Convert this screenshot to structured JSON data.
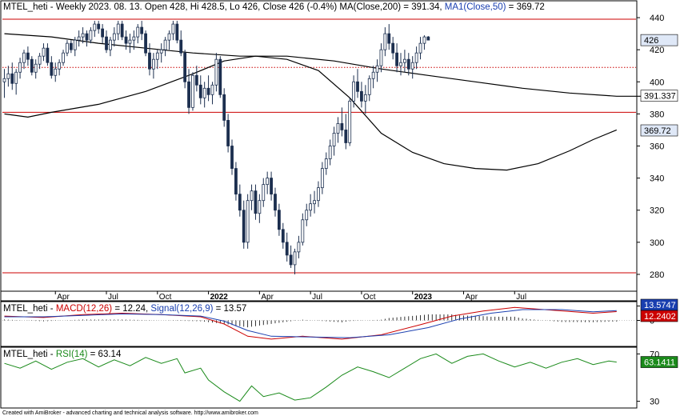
{
  "chart_data": [
    {
      "type": "candlestick",
      "header": {
        "prefix": "MTEL_heti - Weekly 2023. 08. 13. Open 428, Hi 428.5, Lo 426, Close 426 (-0.4%) MA(Close,200) = 391.34, ",
        "ma_label": "MA1(Close,50)",
        "ma_value": " = 369.72"
      },
      "ylim": [
        270,
        450
      ],
      "y_ticks": [
        280,
        300,
        320,
        340,
        360,
        380,
        400,
        420,
        440
      ],
      "x_ticks": [
        "Apr",
        "Jul",
        "Oct",
        "2022",
        "Apr",
        "Jul",
        "Oct",
        "2023",
        "Apr",
        "Jul"
      ],
      "price_badge": "426",
      "ma200_badge": "391.337",
      "ma50_badge": "369.72",
      "horizontal_levels": [
        {
          "value": 439,
          "style": "solid",
          "color": "#cc0000"
        },
        {
          "value": 409,
          "style": "dotted",
          "color": "#cc0000"
        },
        {
          "value": 381,
          "style": "solid",
          "color": "#cc0000"
        },
        {
          "value": 281,
          "style": "solid",
          "color": "#cc0000"
        }
      ],
      "ma200": [
        [
          0,
          430
        ],
        [
          12,
          428
        ],
        [
          24,
          424
        ],
        [
          36,
          421
        ],
        [
          48,
          418
        ],
        [
          60,
          416
        ],
        [
          72,
          416
        ],
        [
          84,
          413
        ],
        [
          96,
          408
        ],
        [
          108,
          404
        ],
        [
          120,
          400
        ],
        [
          132,
          396
        ],
        [
          144,
          393
        ],
        [
          156,
          391
        ],
        [
          168,
          391
        ]
      ],
      "ma50": [
        [
          0,
          380
        ],
        [
          6,
          378
        ],
        [
          12,
          381
        ],
        [
          24,
          386
        ],
        [
          36,
          394
        ],
        [
          48,
          405
        ],
        [
          56,
          413
        ],
        [
          64,
          416
        ],
        [
          72,
          414
        ],
        [
          80,
          407
        ],
        [
          88,
          390
        ],
        [
          96,
          368
        ],
        [
          104,
          356
        ],
        [
          112,
          349
        ],
        [
          120,
          346
        ],
        [
          128,
          345
        ],
        [
          136,
          349
        ],
        [
          144,
          357
        ],
        [
          150,
          364
        ],
        [
          156,
          370
        ]
      ],
      "candles": [
        [
          400,
          408,
          390,
          402
        ],
        [
          402,
          410,
          397,
          405
        ],
        [
          405,
          412,
          395,
          399
        ],
        [
          399,
          408,
          392,
          406
        ],
        [
          406,
          415,
          402,
          412
        ],
        [
          412,
          420,
          408,
          418
        ],
        [
          418,
          422,
          410,
          414
        ],
        [
          414,
          416,
          404,
          406
        ],
        [
          406,
          414,
          402,
          411
        ],
        [
          411,
          418,
          408,
          416
        ],
        [
          416,
          424,
          413,
          421
        ],
        [
          421,
          424,
          410,
          412
        ],
        [
          412,
          416,
          402,
          404
        ],
        [
          404,
          412,
          400,
          408
        ],
        [
          408,
          414,
          404,
          412
        ],
        [
          412,
          420,
          410,
          418
        ],
        [
          418,
          426,
          416,
          424
        ],
        [
          424,
          426,
          418,
          420
        ],
        [
          420,
          428,
          416,
          426
        ],
        [
          426,
          432,
          422,
          428
        ],
        [
          428,
          434,
          424,
          430
        ],
        [
          430,
          432,
          422,
          426
        ],
        [
          426,
          434,
          424,
          432
        ],
        [
          432,
          438,
          428,
          436
        ],
        [
          436,
          438,
          430,
          433
        ],
        [
          433,
          436,
          424,
          428
        ],
        [
          428,
          432,
          418,
          420
        ],
        [
          420,
          428,
          416,
          426
        ],
        [
          426,
          434,
          422,
          430
        ],
        [
          430,
          438,
          426,
          436
        ],
        [
          436,
          438,
          426,
          428
        ],
        [
          428,
          432,
          420,
          424
        ],
        [
          424,
          430,
          418,
          426
        ],
        [
          426,
          432,
          420,
          428
        ],
        [
          428,
          436,
          424,
          434
        ],
        [
          434,
          438,
          426,
          430
        ],
        [
          430,
          432,
          416,
          418
        ],
        [
          418,
          424,
          404,
          408
        ],
        [
          408,
          418,
          402,
          414
        ],
        [
          414,
          420,
          408,
          418
        ],
        [
          418,
          424,
          412,
          420
        ],
        [
          420,
          428,
          416,
          426
        ],
        [
          426,
          432,
          420,
          430
        ],
        [
          430,
          438,
          426,
          436
        ],
        [
          436,
          438,
          424,
          426
        ],
        [
          426,
          432,
          416,
          418
        ],
        [
          418,
          420,
          396,
          400
        ],
        [
          400,
          408,
          380,
          384
        ],
        [
          384,
          406,
          382,
          404
        ],
        [
          404,
          410,
          394,
          398
        ],
        [
          398,
          404,
          386,
          390
        ],
        [
          390,
          400,
          384,
          396
        ],
        [
          396,
          404,
          388,
          392
        ],
        [
          392,
          400,
          386,
          398
        ],
        [
          398,
          418,
          394,
          414
        ],
        [
          414,
          416,
          390,
          392
        ],
        [
          392,
          396,
          372,
          376
        ],
        [
          376,
          380,
          356,
          360
        ],
        [
          360,
          364,
          342,
          346
        ],
        [
          346,
          350,
          326,
          330
        ],
        [
          330,
          336,
          316,
          320
        ],
        [
          320,
          326,
          296,
          300
        ],
        [
          300,
          330,
          296,
          326
        ],
        [
          326,
          336,
          320,
          332
        ],
        [
          332,
          336,
          314,
          318
        ],
        [
          318,
          330,
          312,
          326
        ],
        [
          326,
          340,
          322,
          336
        ],
        [
          336,
          344,
          330,
          340
        ],
        [
          340,
          344,
          326,
          330
        ],
        [
          330,
          334,
          316,
          320
        ],
        [
          320,
          324,
          304,
          308
        ],
        [
          308,
          312,
          296,
          300
        ],
        [
          300,
          306,
          288,
          292
        ],
        [
          292,
          298,
          284,
          286
        ],
        [
          286,
          296,
          280,
          294
        ],
        [
          294,
          304,
          290,
          300
        ],
        [
          300,
          318,
          298,
          314
        ],
        [
          314,
          324,
          310,
          320
        ],
        [
          320,
          330,
          316,
          324
        ],
        [
          324,
          332,
          318,
          326
        ],
        [
          326,
          338,
          322,
          334
        ],
        [
          334,
          350,
          330,
          346
        ],
        [
          346,
          356,
          342,
          352
        ],
        [
          352,
          364,
          348,
          360
        ],
        [
          360,
          372,
          354,
          368
        ],
        [
          368,
          378,
          362,
          374
        ],
        [
          374,
          384,
          366,
          370
        ],
        [
          370,
          380,
          358,
          362
        ],
        [
          362,
          390,
          360,
          388
        ],
        [
          388,
          404,
          384,
          400
        ],
        [
          400,
          408,
          390,
          394
        ],
        [
          394,
          400,
          384,
          388
        ],
        [
          388,
          398,
          380,
          392
        ],
        [
          392,
          404,
          388,
          402
        ],
        [
          402,
          410,
          396,
          406
        ],
        [
          406,
          414,
          400,
          410
        ],
        [
          410,
          424,
          406,
          420
        ],
        [
          420,
          434,
          416,
          430
        ],
        [
          430,
          436,
          420,
          424
        ],
        [
          424,
          428,
          414,
          418
        ],
        [
          418,
          424,
          406,
          410
        ],
        [
          410,
          418,
          404,
          412
        ],
        [
          412,
          420,
          406,
          414
        ],
        [
          414,
          418,
          404,
          408
        ],
        [
          408,
          416,
          402,
          412
        ],
        [
          412,
          422,
          408,
          418
        ],
        [
          418,
          428,
          414,
          424
        ],
        [
          424,
          429,
          420,
          428
        ],
        [
          428,
          428.5,
          426,
          426
        ]
      ],
      "macd_panel": {
        "prefix": "MTEL_heti - ",
        "macd_label": "MACD(12,26)",
        "macd_value": " = 12.24, ",
        "signal_label": "Signal(12,26,9)",
        "signal_value": " = 13.57",
        "ylim": [
          -35,
          25
        ],
        "y_ticks": [
          0,
          20
        ],
        "signal_badge": "13.5747",
        "macd_badge": "12.2402",
        "macd": [
          [
            0,
            6
          ],
          [
            10,
            4
          ],
          [
            20,
            8
          ],
          [
            30,
            10
          ],
          [
            40,
            8
          ],
          [
            50,
            5
          ],
          [
            56,
            -5
          ],
          [
            62,
            -22
          ],
          [
            68,
            -26
          ],
          [
            76,
            -22
          ],
          [
            86,
            -26
          ],
          [
            96,
            -20
          ],
          [
            106,
            -6
          ],
          [
            114,
            6
          ],
          [
            122,
            13
          ],
          [
            130,
            18
          ],
          [
            140,
            14
          ],
          [
            150,
            10
          ],
          [
            156,
            12.24
          ]
        ],
        "signal": [
          [
            0,
            5
          ],
          [
            10,
            5
          ],
          [
            20,
            7
          ],
          [
            30,
            9
          ],
          [
            40,
            8
          ],
          [
            50,
            6
          ],
          [
            56,
            -1
          ],
          [
            62,
            -14
          ],
          [
            68,
            -22
          ],
          [
            78,
            -23
          ],
          [
            88,
            -24
          ],
          [
            98,
            -20
          ],
          [
            108,
            -10
          ],
          [
            116,
            2
          ],
          [
            124,
            10
          ],
          [
            132,
            15
          ],
          [
            142,
            15
          ],
          [
            150,
            12
          ],
          [
            156,
            13.57
          ]
        ]
      },
      "rsi_panel": {
        "prefix": "MTEL_heti - ",
        "rsi_label": "RSI(14)",
        "rsi_value": " = 63.14",
        "ylim": [
          25,
          75
        ],
        "y_ticks": [
          30,
          70
        ],
        "rsi_badge": "63.1411",
        "rsi": [
          [
            0,
            62
          ],
          [
            4,
            58
          ],
          [
            8,
            64
          ],
          [
            12,
            57
          ],
          [
            16,
            63
          ],
          [
            20,
            66
          ],
          [
            24,
            59
          ],
          [
            28,
            65
          ],
          [
            32,
            60
          ],
          [
            36,
            67
          ],
          [
            40,
            62
          ],
          [
            44,
            66
          ],
          [
            46,
            54
          ],
          [
            50,
            58
          ],
          [
            52,
            48
          ],
          [
            56,
            38
          ],
          [
            60,
            30
          ],
          [
            63,
            43
          ],
          [
            66,
            34
          ],
          [
            70,
            37
          ],
          [
            74,
            31
          ],
          [
            78,
            33
          ],
          [
            82,
            42
          ],
          [
            86,
            52
          ],
          [
            90,
            59
          ],
          [
            94,
            55
          ],
          [
            98,
            50
          ],
          [
            102,
            58
          ],
          [
            106,
            66
          ],
          [
            110,
            70
          ],
          [
            114,
            62
          ],
          [
            118,
            68
          ],
          [
            122,
            70
          ],
          [
            126,
            64
          ],
          [
            130,
            59
          ],
          [
            134,
            63
          ],
          [
            138,
            58
          ],
          [
            142,
            63
          ],
          [
            146,
            66
          ],
          [
            150,
            61
          ],
          [
            154,
            64
          ],
          [
            156,
            63.14
          ]
        ]
      }
    }
  ],
  "footer": "Created with AmiBroker - advanced charting and technical analysis software. http://www.amibroker.com"
}
